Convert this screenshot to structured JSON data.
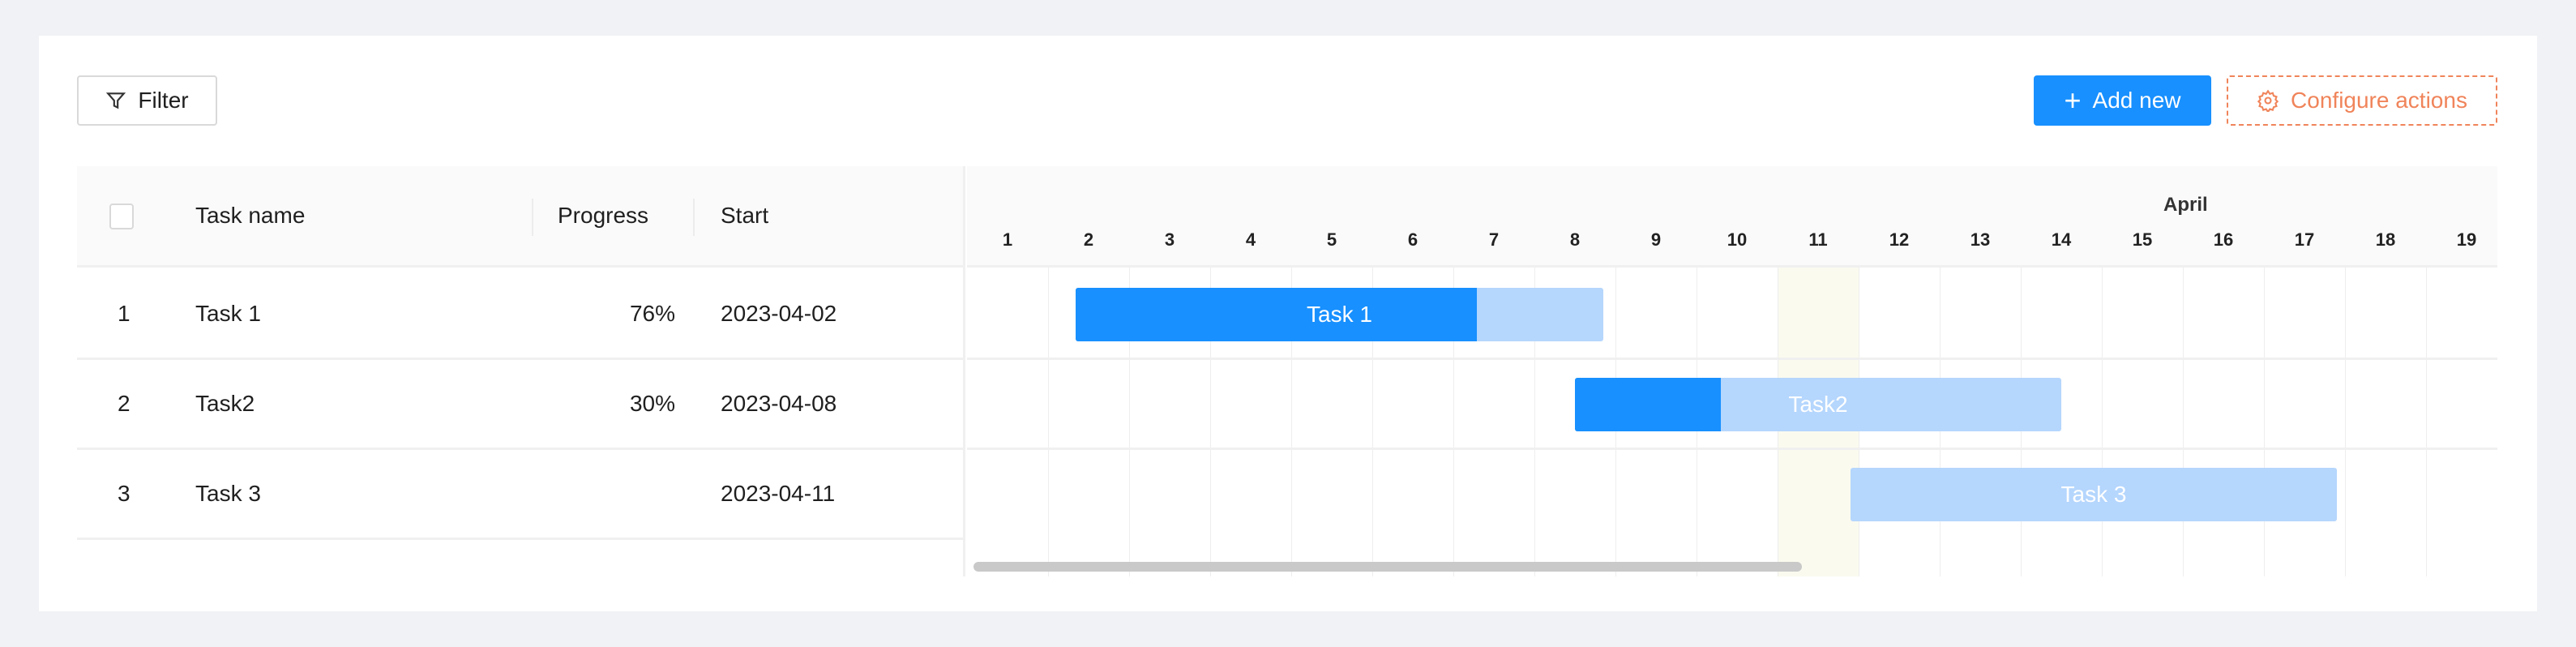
{
  "toolbar": {
    "filter_label": "Filter",
    "add_label": "Add new",
    "configure_label": "Configure actions"
  },
  "table": {
    "columns": [
      "Task name",
      "Progress",
      "Start"
    ],
    "rows": [
      {
        "index": "1",
        "name": "Task 1",
        "progress": "76%",
        "start": "2023-04-02"
      },
      {
        "index": "2",
        "name": "Task2",
        "progress": "30%",
        "start": "2023-04-08"
      },
      {
        "index": "3",
        "name": "Task 3",
        "progress": "",
        "start": "2023-04-11"
      }
    ]
  },
  "gantt": {
    "month": "April",
    "days": [
      "1",
      "2",
      "3",
      "4",
      "5",
      "6",
      "7",
      "8",
      "9",
      "10",
      "11",
      "12",
      "13",
      "14",
      "15",
      "16",
      "17",
      "18",
      "19"
    ],
    "highlight_day": 11
  },
  "chart_data": {
    "type": "gantt",
    "tasks": [
      {
        "name": "Task 1",
        "start": "2023-04-02",
        "end": "2023-04-08",
        "progress": 76
      },
      {
        "name": "Task2",
        "start": "2023-04-08",
        "end": "2023-04-14",
        "progress": 30
      },
      {
        "name": "Task 3",
        "start": "2023-04-11",
        "end": "2023-04-17",
        "progress": 0
      }
    ]
  },
  "colors": {
    "primary": "#1890ff",
    "bar_bg": "#b5d6fd",
    "configure": "#f0845a",
    "today": "#fafaef"
  }
}
